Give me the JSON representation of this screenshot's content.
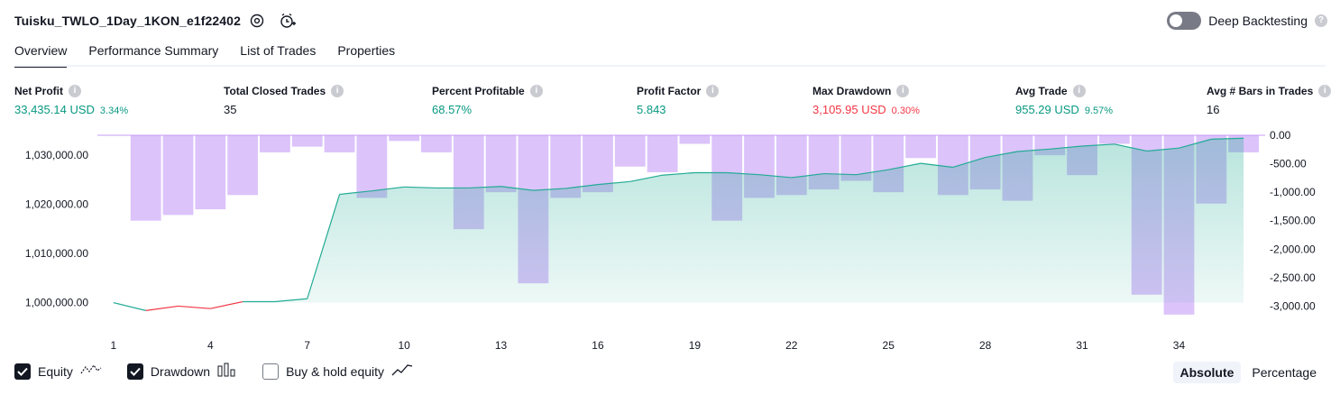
{
  "header": {
    "title": "Tuisku_TWLO_1Day_1KON_e1f22402",
    "deep_backtesting_label": "Deep Backtesting",
    "deep_backtesting_on": false
  },
  "tabs": [
    {
      "label": "Overview",
      "active": true
    },
    {
      "label": "Performance Summary",
      "active": false
    },
    {
      "label": "List of Trades",
      "active": false
    },
    {
      "label": "Properties",
      "active": false
    }
  ],
  "metrics": [
    {
      "label": "Net Profit",
      "value": "33,435.14 USD",
      "pct": "3.34%",
      "color": "#089981"
    },
    {
      "label": "Total Closed Trades",
      "value": "35",
      "pct": "",
      "color": "#131722"
    },
    {
      "label": "Percent Profitable",
      "value": "68.57%",
      "pct": "",
      "color": "#089981"
    },
    {
      "label": "Profit Factor",
      "value": "5.843",
      "pct": "",
      "color": "#089981"
    },
    {
      "label": "Max Drawdown",
      "value": "3,105.95 USD",
      "pct": "0.30%",
      "color": "#f23645"
    },
    {
      "label": "Avg Trade",
      "value": "955.29 USD",
      "pct": "9.57%",
      "color": "#089981"
    },
    {
      "label": "Avg # Bars in Trades",
      "value": "16",
      "pct": "",
      "color": "#131722"
    }
  ],
  "legend": {
    "equity_label": "Equity",
    "equity_checked": true,
    "drawdown_label": "Drawdown",
    "drawdown_checked": true,
    "buyhold_label": "Buy & hold equity",
    "buyhold_checked": false,
    "absolute_label": "Absolute",
    "percentage_label": "Percentage",
    "selected_mode": "Absolute"
  },
  "colors": {
    "equity_line": "#22ab94",
    "equity_fill": "#22ab94",
    "equity_negative": "#f23645",
    "drawdown_bar": "#c49bf7"
  },
  "chart_data": {
    "type": "area",
    "x_ticks": [
      "1",
      "4",
      "7",
      "10",
      "13",
      "16",
      "19",
      "22",
      "25",
      "28",
      "31",
      "34"
    ],
    "left_axis": {
      "ticks": [
        "1,030,000.00",
        "1,020,000.00",
        "1,010,000.00",
        "1,000,000.00"
      ],
      "tick_values": [
        1030000,
        1020000,
        1010000,
        1000000
      ],
      "range": [
        997000,
        1034000
      ]
    },
    "right_axis": {
      "ticks": [
        "0.00",
        "-500.00",
        "-1,000.00",
        "-1,500.00",
        "-2,000.00",
        "-2,500.00",
        "-3,000.00"
      ],
      "tick_values": [
        0,
        -500,
        -1000,
        -1500,
        -2000,
        -2500,
        -3000
      ],
      "range": [
        -3200,
        0
      ]
    },
    "series": [
      {
        "name": "Equity",
        "x": [
          1,
          2,
          3,
          4,
          5,
          6,
          7,
          8,
          9,
          10,
          11,
          12,
          13,
          14,
          15,
          16,
          17,
          18,
          19,
          20,
          21,
          22,
          23,
          24,
          25,
          26,
          27,
          28,
          29,
          30,
          31,
          32,
          33,
          34,
          35,
          36
        ],
        "values": [
          1000000,
          998400,
          999300,
          998800,
          1000200,
          1000200,
          1000800,
          1022000,
          1022700,
          1023500,
          1023300,
          1023300,
          1023600,
          1022800,
          1023200,
          1024000,
          1024600,
          1025900,
          1026400,
          1026400,
          1026000,
          1025400,
          1026200,
          1026000,
          1027000,
          1028300,
          1027500,
          1029500,
          1030700,
          1031200,
          1031800,
          1032200,
          1030800,
          1031400,
          1033200,
          1033400
        ]
      },
      {
        "name": "Drawdown",
        "x": [
          1,
          2,
          3,
          4,
          5,
          6,
          7,
          8,
          9,
          10,
          11,
          12,
          13,
          14,
          15,
          16,
          17,
          18,
          19,
          20,
          21,
          22,
          23,
          24,
          25,
          26,
          27,
          28,
          29,
          30,
          31,
          32,
          33,
          34,
          35,
          36
        ],
        "values": [
          0,
          -1500,
          -1400,
          -1300,
          -1050,
          -300,
          -200,
          -300,
          -1100,
          -100,
          -300,
          -1650,
          -1000,
          -2600,
          -1100,
          -1000,
          -550,
          -650,
          -150,
          -1500,
          -1100,
          -1050,
          -950,
          -800,
          -1000,
          -400,
          -1050,
          -950,
          -1150,
          -350,
          -700,
          -150,
          -2800,
          -3150,
          -1200,
          -300
        ]
      }
    ]
  }
}
